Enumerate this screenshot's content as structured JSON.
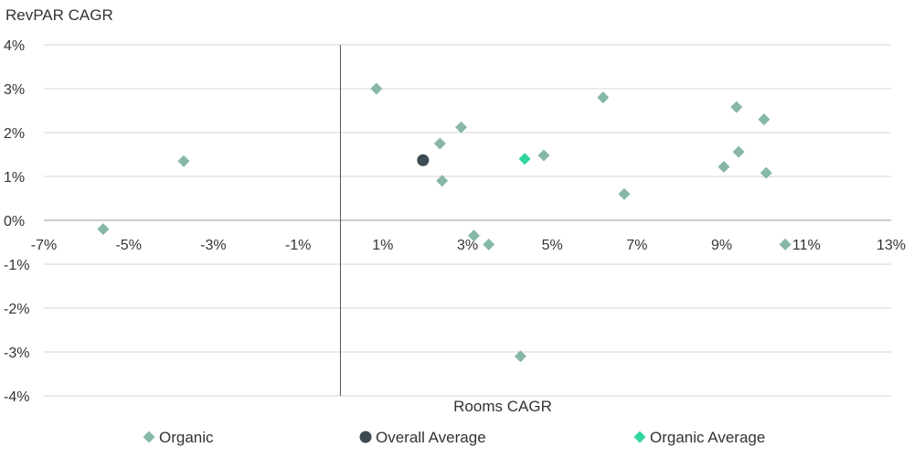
{
  "chart_data": {
    "type": "scatter",
    "title": "",
    "ylabel": "RevPAR CAGR",
    "xlabel": "Rooms CAGR",
    "xlim": [
      -7,
      13
    ],
    "ylim": [
      -4,
      4
    ],
    "xticks": [
      -7,
      -5,
      -3,
      -1,
      1,
      3,
      5,
      7,
      9,
      11,
      13
    ],
    "yticks": [
      -4,
      -3,
      -2,
      -1,
      0,
      1,
      2,
      3,
      4
    ],
    "x_tick_labels": [
      "-7%",
      "-5%",
      "-3%",
      "-1%",
      "1%",
      "3%",
      "5%",
      "7%",
      "9%",
      "11%",
      "13%"
    ],
    "y_tick_labels": [
      "-4%",
      "-3%",
      "-2%",
      "-1%",
      "0%",
      "1%",
      "2%",
      "3%",
      "4%"
    ],
    "grid": true,
    "legend_position": "bottom",
    "series": [
      {
        "name": "Organic",
        "marker": "diamond",
        "color": "#86B7A9",
        "points": [
          [
            -5.6,
            -0.2
          ],
          [
            -3.7,
            1.35
          ],
          [
            0.85,
            3.0
          ],
          [
            2.35,
            1.75
          ],
          [
            2.4,
            0.9
          ],
          [
            2.85,
            2.12
          ],
          [
            3.15,
            -0.35
          ],
          [
            3.5,
            -0.55
          ],
          [
            4.25,
            -3.1
          ],
          [
            4.8,
            1.48
          ],
          [
            6.2,
            2.8
          ],
          [
            6.7,
            0.6
          ],
          [
            9.05,
            1.22
          ],
          [
            9.35,
            2.58
          ],
          [
            9.4,
            1.56
          ],
          [
            10.0,
            2.3
          ],
          [
            10.05,
            1.08
          ],
          [
            10.5,
            -0.55
          ]
        ]
      },
      {
        "name": "Overall Average",
        "marker": "circle",
        "color": "#3C4A51",
        "points": [
          [
            1.95,
            1.37
          ]
        ]
      },
      {
        "name": "Organic Average",
        "marker": "diamond",
        "color": "#2ED69B",
        "points": [
          [
            4.35,
            1.4
          ]
        ]
      }
    ]
  }
}
